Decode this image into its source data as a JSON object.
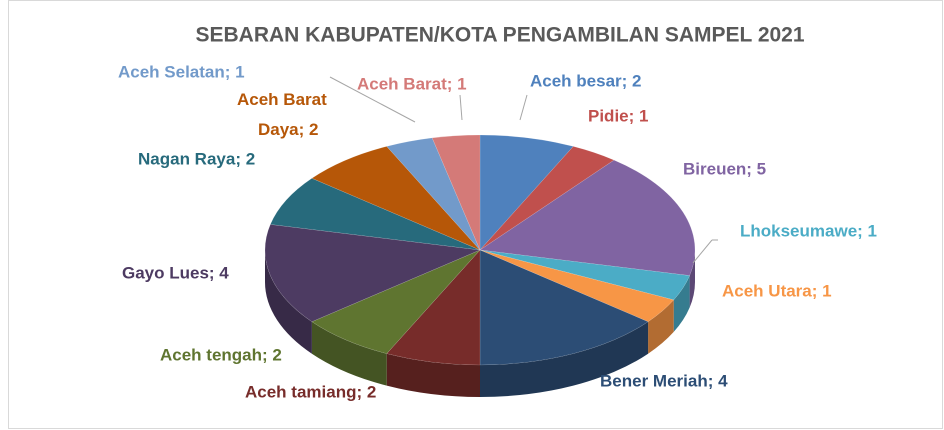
{
  "chart_data": {
    "type": "pie3d",
    "title": "SEBARAN KABUPATEN/KOTA PENGAMBILAN SAMPEL 2021",
    "categories": [
      "Aceh besar",
      "Pidie",
      "Bireuen",
      "Lhokseumawe",
      "Aceh Utara",
      "Bener Meriah",
      "Aceh tamiang",
      "Aceh tengah",
      "Gayo Lues",
      "Nagan Raya",
      "Aceh Barat Daya",
      "Aceh Selatan",
      "Aceh Barat"
    ],
    "values": [
      2,
      1,
      5,
      1,
      1,
      4,
      2,
      2,
      4,
      2,
      2,
      1,
      1
    ],
    "value_labels": [
      "Aceh besar; 2",
      "Pidie; 1",
      "Bireuen; 5",
      "Lhokseumawe; 1",
      "Aceh Utara; 1",
      "Bener Meriah; 4",
      "Aceh tamiang; 2",
      "Aceh tengah; 2",
      "Gayo Lues; 4",
      "Nagan Raya; 2",
      "Aceh Barat Daya; 2",
      "Aceh Selatan; 1",
      "Aceh Barat; 1"
    ],
    "colors": [
      "#4f81bd",
      "#c0504d",
      "#8064a2",
      "#4bacc6",
      "#f79646",
      "#2c4d75",
      "#772c2a",
      "#5f7530",
      "#4d3b62",
      "#276a7c",
      "#b65708",
      "#729aca",
      "#d47a78"
    ]
  }
}
